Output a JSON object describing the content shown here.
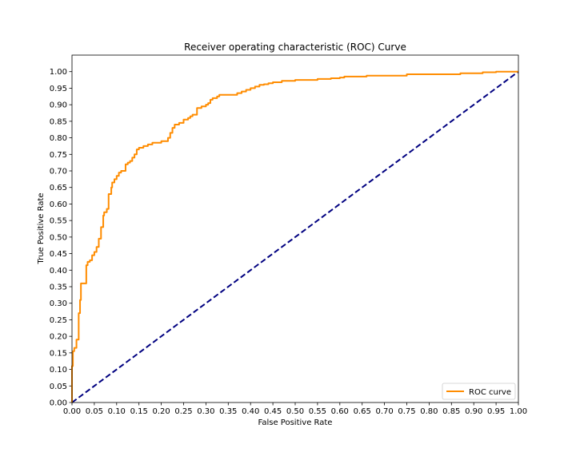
{
  "chart_data": {
    "type": "line",
    "title": "Receiver operating characteristic (ROC) Curve",
    "xlabel": "False Positive Rate",
    "ylabel": "True Positive Rate",
    "xlim": [
      0.0,
      1.0
    ],
    "ylim": [
      0.0,
      1.05
    ],
    "xticks": [
      "0.00",
      "0.05",
      "0.10",
      "0.15",
      "0.20",
      "0.25",
      "0.30",
      "0.35",
      "0.40",
      "0.45",
      "0.50",
      "0.55",
      "0.60",
      "0.65",
      "0.70",
      "0.75",
      "0.80",
      "0.85",
      "0.90",
      "0.95",
      "1.00"
    ],
    "yticks": [
      "0.00",
      "0.05",
      "0.10",
      "0.15",
      "0.20",
      "0.25",
      "0.30",
      "0.35",
      "0.40",
      "0.45",
      "0.50",
      "0.55",
      "0.60",
      "0.65",
      "0.70",
      "0.75",
      "0.80",
      "0.85",
      "0.90",
      "0.95",
      "1.00"
    ],
    "grid": false,
    "legend_position": "lower-right",
    "series": [
      {
        "name": "ROC curve",
        "color": "#ff8c00",
        "linestyle": "solid",
        "x": [
          0.0,
          0.0,
          0.002,
          0.002,
          0.005,
          0.005,
          0.01,
          0.01,
          0.015,
          0.015,
          0.018,
          0.018,
          0.02,
          0.02,
          0.025,
          0.025,
          0.032,
          0.032,
          0.035,
          0.035,
          0.04,
          0.04,
          0.045,
          0.045,
          0.05,
          0.05,
          0.055,
          0.055,
          0.06,
          0.06,
          0.065,
          0.065,
          0.07,
          0.07,
          0.072,
          0.072,
          0.078,
          0.078,
          0.082,
          0.082,
          0.088,
          0.088,
          0.09,
          0.09,
          0.095,
          0.095,
          0.1,
          0.1,
          0.105,
          0.105,
          0.11,
          0.11,
          0.12,
          0.12,
          0.125,
          0.125,
          0.13,
          0.13,
          0.135,
          0.135,
          0.14,
          0.14,
          0.145,
          0.145,
          0.15,
          0.15,
          0.16,
          0.16,
          0.17,
          0.17,
          0.18,
          0.18,
          0.2,
          0.2,
          0.215,
          0.215,
          0.22,
          0.22,
          0.225,
          0.225,
          0.23,
          0.23,
          0.24,
          0.24,
          0.25,
          0.25,
          0.26,
          0.26,
          0.265,
          0.265,
          0.27,
          0.27,
          0.28,
          0.28,
          0.29,
          0.29,
          0.3,
          0.3,
          0.305,
          0.305,
          0.31,
          0.31,
          0.315,
          0.315,
          0.325,
          0.325,
          0.33,
          0.33,
          0.37,
          0.37,
          0.38,
          0.38,
          0.39,
          0.39,
          0.4,
          0.4,
          0.41,
          0.41,
          0.42,
          0.42,
          0.43,
          0.43,
          0.44,
          0.44,
          0.45,
          0.45,
          0.47,
          0.47,
          0.5,
          0.5,
          0.55,
          0.55,
          0.58,
          0.58,
          0.6,
          0.6,
          0.61,
          0.61,
          0.66,
          0.66,
          0.75,
          0.75,
          0.87,
          0.87,
          0.92,
          0.92,
          0.95,
          0.95,
          1.0
        ],
        "y": [
          0.0,
          0.11,
          0.11,
          0.155,
          0.155,
          0.165,
          0.165,
          0.19,
          0.19,
          0.27,
          0.27,
          0.31,
          0.31,
          0.36,
          0.36,
          0.36,
          0.36,
          0.415,
          0.415,
          0.425,
          0.425,
          0.43,
          0.43,
          0.445,
          0.445,
          0.455,
          0.455,
          0.47,
          0.47,
          0.495,
          0.495,
          0.53,
          0.53,
          0.565,
          0.565,
          0.575,
          0.575,
          0.585,
          0.585,
          0.63,
          0.63,
          0.65,
          0.65,
          0.665,
          0.665,
          0.675,
          0.675,
          0.685,
          0.685,
          0.695,
          0.695,
          0.7,
          0.7,
          0.72,
          0.72,
          0.725,
          0.725,
          0.73,
          0.73,
          0.74,
          0.74,
          0.75,
          0.75,
          0.765,
          0.765,
          0.77,
          0.77,
          0.775,
          0.775,
          0.78,
          0.78,
          0.785,
          0.785,
          0.79,
          0.79,
          0.8,
          0.8,
          0.815,
          0.815,
          0.83,
          0.83,
          0.84,
          0.84,
          0.845,
          0.845,
          0.855,
          0.855,
          0.86,
          0.86,
          0.865,
          0.865,
          0.87,
          0.87,
          0.89,
          0.89,
          0.895,
          0.895,
          0.9,
          0.9,
          0.905,
          0.905,
          0.915,
          0.915,
          0.92,
          0.92,
          0.925,
          0.925,
          0.93,
          0.93,
          0.935,
          0.935,
          0.94,
          0.94,
          0.945,
          0.945,
          0.95,
          0.95,
          0.955,
          0.955,
          0.96,
          0.96,
          0.962,
          0.962,
          0.965,
          0.965,
          0.968,
          0.968,
          0.972,
          0.972,
          0.975,
          0.975,
          0.978,
          0.978,
          0.98,
          0.98,
          0.982,
          0.982,
          0.985,
          0.985,
          0.988,
          0.988,
          0.992,
          0.992,
          0.995,
          0.995,
          0.998,
          0.998,
          1.0,
          1.0
        ]
      },
      {
        "name": "",
        "color": "#000080",
        "linestyle": "dashed",
        "x": [
          0.0,
          1.0
        ],
        "y": [
          0.0,
          1.0
        ]
      }
    ]
  }
}
